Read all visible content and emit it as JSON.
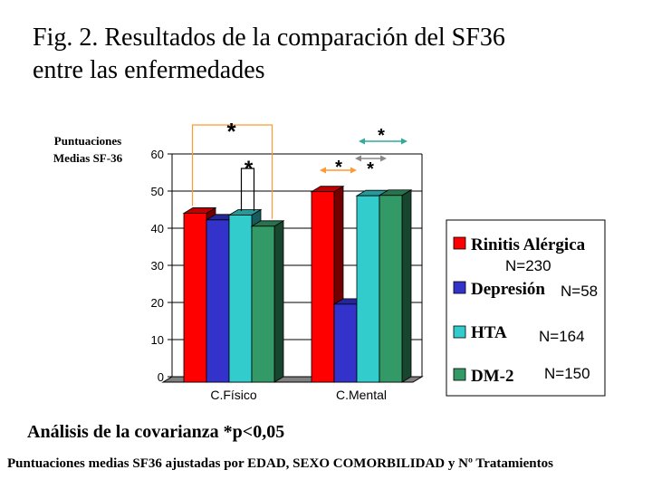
{
  "title_line1": "Fig. 2. Resultados de la comparación del  SF36",
  "title_line2": "entre las enfermedades",
  "chart_data": {
    "type": "bar",
    "ylabel_line1": "Puntuaciones",
    "ylabel_line2": "Medias SF-36",
    "ylim": [
      0,
      60
    ],
    "yticks": [
      0,
      10,
      20,
      30,
      40,
      50,
      60
    ],
    "categories": [
      "C.Físico",
      "C.Mental"
    ],
    "grid": true,
    "legend_position": "right",
    "series": [
      {
        "name": "Rinitis Alérgica",
        "n_label": "N=230",
        "color": "#ff0000",
        "values": [
          45.5,
          51.3
        ]
      },
      {
        "name": "Depresión",
        "n_label": "N=58",
        "color": "#3333cc",
        "values": [
          43.7,
          21.0
        ]
      },
      {
        "name": "HTA",
        "n_label": "N=164",
        "color": "#33cccc",
        "values": [
          45.0,
          50.2
        ]
      },
      {
        "name": "DM-2",
        "n_label": "N=150",
        "color": "#339966",
        "values": [
          42.0,
          50.3
        ]
      }
    ],
    "annotations": [
      {
        "label": "*",
        "group": 0,
        "from": 0,
        "to": 3,
        "style": "bracket",
        "color": "#ff9933"
      },
      {
        "label": "*",
        "group": 0,
        "from": 1,
        "to": 2,
        "style": "bracket",
        "color": "#000000"
      },
      {
        "label": "*",
        "group": 1,
        "from": 0,
        "to": 1,
        "style": "arrow",
        "color": "#ff9933"
      },
      {
        "label": "*",
        "group": 1,
        "from": 1,
        "to": 2,
        "style": "arrow",
        "color": "#888888"
      },
      {
        "label": "*",
        "group": 1,
        "from": 1,
        "to": 3,
        "style": "arrow",
        "color": "#33aa99"
      }
    ]
  },
  "footer_line1": "Análisis de la covarianza *p<0,05",
  "footer_line2": "Puntuaciones medias SF36 ajustadas por EDAD, SEXO COMORBILIDAD y Nº Tratamientos"
}
